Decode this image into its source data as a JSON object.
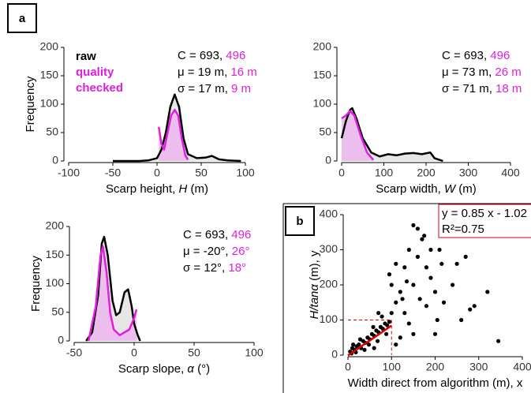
{
  "chart_data": [
    {
      "type": "line",
      "panel_label": "a",
      "ylabel": "Frequency",
      "xlabel": {
        "text": "Scarp height, ",
        "var": "H",
        "unit": " (m)"
      },
      "xlim": [
        -100,
        100
      ],
      "xticks": [
        -100,
        -50,
        0,
        50,
        100
      ],
      "ylim": [
        0,
        200
      ],
      "yticks": [
        0,
        50,
        100,
        150,
        200
      ],
      "legend": true,
      "stats_qc_color": "#e01ee0",
      "stats": [
        {
          "text": "C = 693, ",
          "qc": "496"
        },
        {
          "text": "μ = 19 m, ",
          "qc": "16 m"
        },
        {
          "text": "σ = 17 m, ",
          "qc": "9 m"
        }
      ],
      "series": [
        {
          "name": "raw",
          "color": "#000000",
          "fill": "#e2e2e2",
          "x": [
            -50,
            -20,
            -10,
            0,
            5,
            10,
            15,
            20,
            25,
            30,
            35,
            45,
            55,
            62,
            70,
            80,
            95
          ],
          "values": [
            0,
            0,
            1,
            5,
            20,
            50,
            95,
            117,
            95,
            40,
            12,
            5,
            6,
            9,
            3,
            1,
            0
          ]
        },
        {
          "name": "quality checked",
          "color": "#e01ee0",
          "fill": "#ecb6ef",
          "x": [
            2,
            5,
            8,
            12,
            16,
            20,
            24,
            28,
            32,
            35
          ],
          "values": [
            60,
            30,
            20,
            50,
            80,
            90,
            80,
            40,
            10,
            2
          ]
        }
      ]
    },
    {
      "type": "line",
      "xlabel": {
        "text": "Scarp width, ",
        "var": "W",
        "unit": " (m)"
      },
      "xlim": [
        0,
        400
      ],
      "xticks": [
        0,
        100,
        200,
        300,
        400
      ],
      "ylim": [
        0,
        200
      ],
      "yticks": [
        0,
        50,
        100,
        150,
        200
      ],
      "stats_qc_color": "#e01ee0",
      "stats": [
        {
          "text": "C = 693, ",
          "qc": "496"
        },
        {
          "text": "μ = 73 m, ",
          "qc": "26 m"
        },
        {
          "text": "σ = 71 m, ",
          "qc": "18 m"
        }
      ],
      "series": [
        {
          "color": "#000000",
          "fill": "#e2e2e2",
          "x": [
            0,
            10,
            20,
            25,
            35,
            50,
            70,
            90,
            110,
            130,
            150,
            170,
            190,
            210,
            220,
            240
          ],
          "values": [
            40,
            70,
            90,
            93,
            75,
            40,
            15,
            8,
            12,
            10,
            13,
            14,
            12,
            15,
            5,
            0
          ]
        },
        {
          "color": "#e01ee0",
          "fill": "#ecb6ef",
          "x": [
            0,
            10,
            20,
            30,
            45,
            60,
            75
          ],
          "values": [
            75,
            80,
            88,
            80,
            45,
            15,
            2
          ]
        }
      ]
    },
    {
      "type": "line",
      "ylabel": "Frequency",
      "xlabel": {
        "text": "Scarp slope, ",
        "var": "α",
        "unit": " (°)"
      },
      "xlim": [
        -50,
        100
      ],
      "xticks": [
        -50,
        0,
        50,
        100
      ],
      "ylim": [
        0,
        200
      ],
      "yticks": [
        0,
        50,
        100,
        150,
        200
      ],
      "stats_qc_color": "#e01ee0",
      "stats": [
        {
          "text": "C = 693, ",
          "qc": "496"
        },
        {
          "text": "μ = -20°, ",
          "qc": "26°"
        },
        {
          "text": "σ = 12°, ",
          "qc": "18°"
        }
      ],
      "series": [
        {
          "color": "#000000",
          "fill": "#e2e2e2",
          "x": [
            -40,
            -35,
            -30,
            -27,
            -25,
            -22,
            -18,
            -15,
            -12,
            -8,
            -5,
            -2,
            0,
            3,
            5
          ],
          "values": [
            0,
            15,
            80,
            170,
            182,
            150,
            70,
            45,
            50,
            85,
            90,
            60,
            30,
            10,
            0
          ]
        },
        {
          "color": "#e01ee0",
          "fill": "#ecb6ef",
          "x": [
            -38,
            -32,
            -28,
            -26,
            -23,
            -20,
            -17,
            -12,
            -8,
            -4,
            0,
            2
          ],
          "values": [
            0,
            60,
            150,
            165,
            120,
            50,
            20,
            10,
            15,
            20,
            40,
            55
          ]
        }
      ]
    },
    {
      "type": "scatter",
      "panel_label": "b",
      "xlabel": {
        "text": "Width direct from algorithm (m), x"
      },
      "ylabel": {
        "var": "H/tanα",
        "unit": " (m), y"
      },
      "xlim": [
        0,
        400
      ],
      "xticks": [
        0,
        100,
        200,
        300,
        400
      ],
      "ylim": [
        0,
        400
      ],
      "yticks": [
        0,
        100,
        200,
        300,
        400
      ],
      "color": "#000000",
      "fit": {
        "text": "y = 0.85 x - 1.02",
        "r2": "R²=0.75",
        "slope": 0.85,
        "intercept": -1.02,
        "color": "#dd0000"
      },
      "guide_x": 100,
      "guide_y": 100,
      "x": [
        5,
        10,
        15,
        20,
        25,
        30,
        35,
        40,
        45,
        50,
        55,
        60,
        65,
        70,
        75,
        80,
        85,
        90,
        8,
        12,
        18,
        28,
        38,
        48,
        58,
        68,
        78,
        88,
        95,
        100,
        110,
        120,
        130,
        140,
        150,
        160,
        170,
        180,
        190,
        200,
        210,
        220,
        230,
        240,
        250,
        260,
        270,
        280,
        290,
        320,
        345,
        150,
        160,
        175,
        130,
        140,
        120,
        110,
        100,
        110,
        95,
        200,
        205,
        180,
        165,
        150,
        125,
        135,
        190,
        215,
        60,
        70
      ],
      "values": [
        10,
        20,
        15,
        25,
        30,
        20,
        40,
        35,
        50,
        45,
        60,
        55,
        70,
        65,
        80,
        75,
        90,
        85,
        5,
        30,
        8,
        45,
        15,
        30,
        80,
        40,
        110,
        60,
        95,
        120,
        150,
        180,
        250,
        300,
        200,
        280,
        330,
        250,
        220,
        180,
        300,
        150,
        350,
        200,
        260,
        100,
        280,
        130,
        140,
        180,
        40,
        370,
        360,
        340,
        120,
        90,
        50,
        30,
        200,
        260,
        230,
        60,
        100,
        140,
        160,
        60,
        160,
        210,
        300,
        260,
        20,
        120
      ]
    }
  ]
}
